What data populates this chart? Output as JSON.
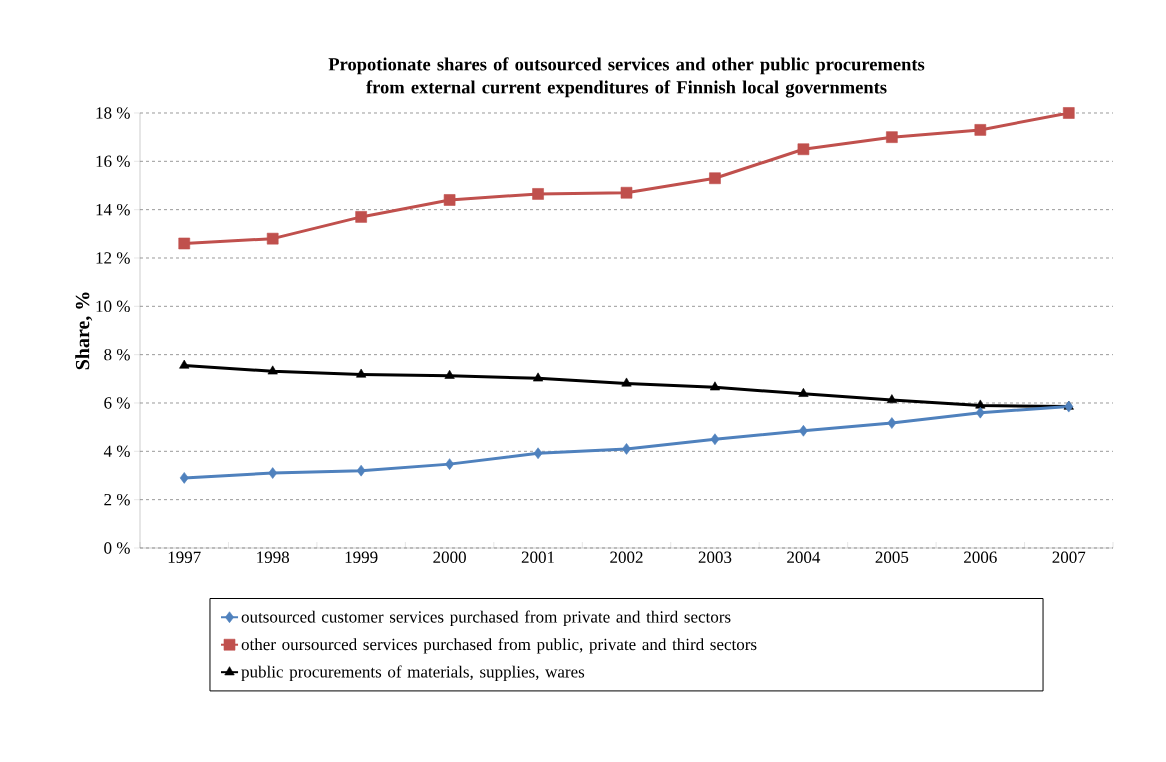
{
  "chart_data": {
    "type": "line",
    "title": "Propotionate shares of outsourced services and other public procurements from external current expenditures of Finnish local governments",
    "ylabel": "Share, %",
    "categories": [
      "1997",
      "1998",
      "1999",
      "2000",
      "2001",
      "2002",
      "2003",
      "2004",
      "2005",
      "2006",
      "2007"
    ],
    "series": [
      {
        "name": "outsourced customer services purchased from private and third sectors",
        "color": "#4f81bd",
        "marker": "diamond",
        "values": [
          2.9,
          3.1,
          3.2,
          3.47,
          3.92,
          4.1,
          4.5,
          4.85,
          5.17,
          5.6,
          5.85
        ]
      },
      {
        "name": "other oursourced services purchased from public, private and third sectors",
        "color": "#c0504d",
        "marker": "square",
        "values": [
          12.6,
          12.8,
          13.7,
          14.4,
          14.65,
          14.7,
          15.3,
          16.5,
          17.0,
          17.3,
          18.0
        ]
      },
      {
        "name": "public procurements of materials, supplies, wares",
        "color": "#000000",
        "marker": "triangle",
        "values": [
          7.55,
          7.31,
          7.18,
          7.13,
          7.02,
          6.81,
          6.65,
          6.38,
          6.12,
          5.9,
          5.85
        ]
      }
    ],
    "ylim": [
      0,
      18
    ],
    "yticks": [
      {
        "value": 0,
        "label": "0 %"
      },
      {
        "value": 2,
        "label": "2 %"
      },
      {
        "value": 4,
        "label": "4 %"
      },
      {
        "value": 6,
        "label": "6 %"
      },
      {
        "value": 8,
        "label": "8 %"
      },
      {
        "value": 10,
        "label": "10 %"
      },
      {
        "value": 12,
        "label": "12 %"
      },
      {
        "value": 14,
        "label": "14 %"
      },
      {
        "value": 16,
        "label": "16 %"
      },
      {
        "value": 18,
        "label": "18 %"
      }
    ],
    "grid": "y",
    "legend": "bottom",
    "line_style": "solid"
  }
}
